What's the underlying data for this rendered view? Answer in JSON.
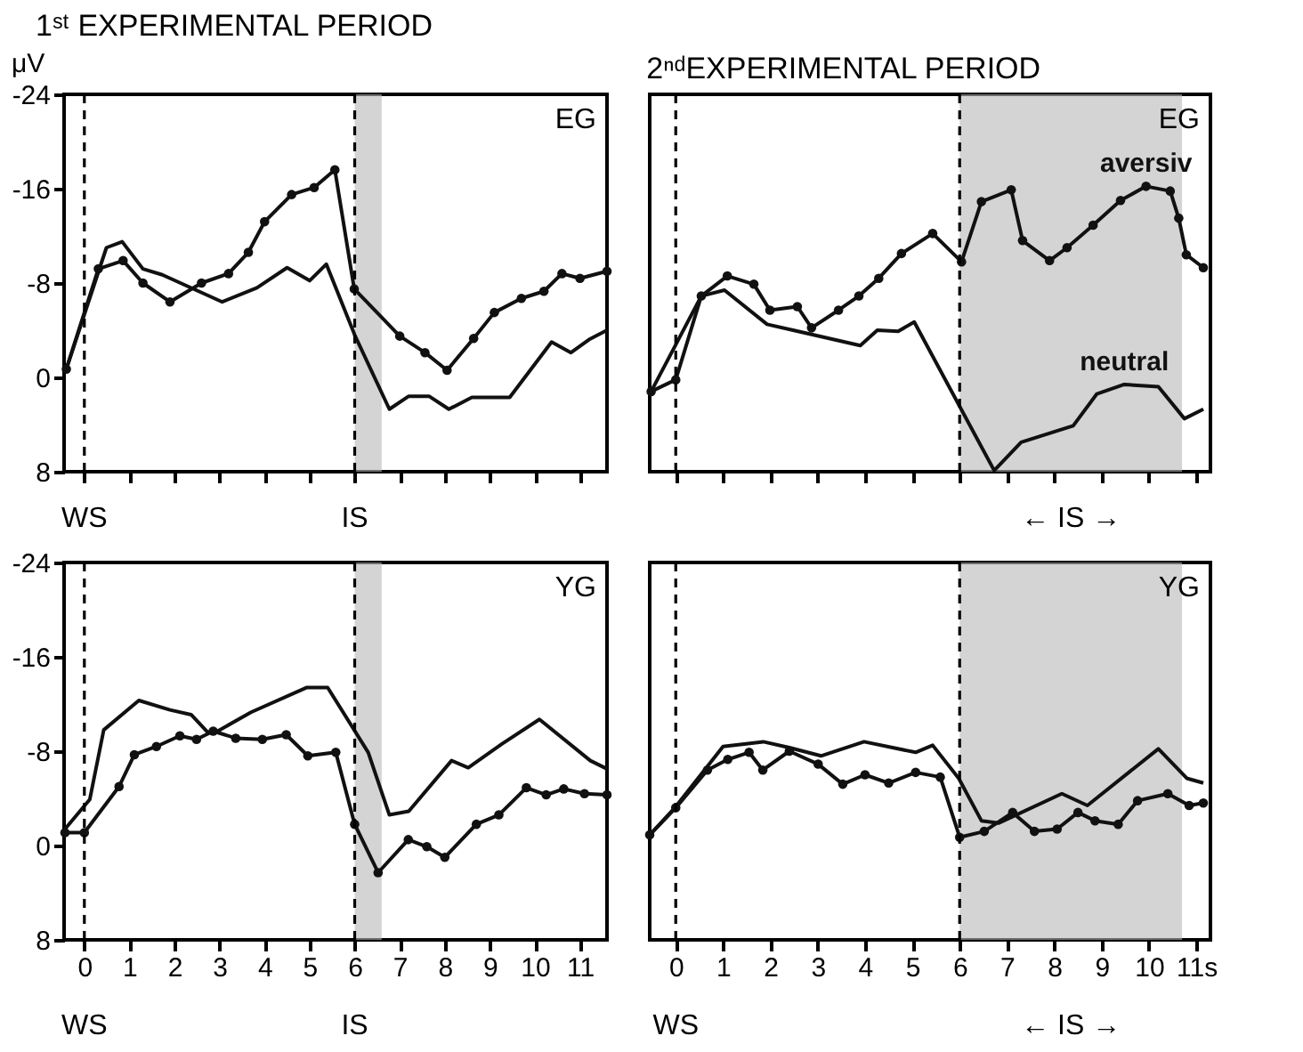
{
  "chart_data": [
    {
      "type": "line",
      "title": "1ˢᵗ EXPERIMENTAL PERIOD",
      "ylabel": "μV",
      "xlim": [
        -0.45,
        11.6
      ],
      "ylim": [
        8,
        -24
      ],
      "xticks": [
        0,
        1,
        2,
        3,
        4,
        5,
        6,
        7,
        8,
        9,
        10,
        11
      ],
      "yticks": [
        -24,
        -16,
        -8,
        0,
        8
      ],
      "tick_labels": "y",
      "grid": false,
      "legend": false,
      "series": [
        {
          "color": "#111111",
          "marker": "circle",
          "x": [
            -0.4,
            0.31,
            0.86,
            1.3,
            1.9,
            2.6,
            3.2,
            3.64,
            4.0,
            4.6,
            5.1,
            5.56,
            5.99,
            7.0,
            7.56,
            8.05,
            8.64,
            9.1,
            9.7,
            10.2,
            10.6,
            11.0,
            11.6
          ],
          "values": [
            -0.7,
            -9.2,
            -9.9,
            -8.0,
            -6.4,
            -8.0,
            -8.8,
            -10.6,
            -13.2,
            -15.5,
            -16.1,
            -17.6,
            -7.5,
            -3.5,
            -2.1,
            -0.6,
            -3.3,
            -5.5,
            -6.7,
            -7.3,
            -8.8,
            -8.4,
            -9.0
          ]
        },
        {
          "color": "#111111",
          "marker": "none",
          "x": [
            -0.4,
            0.49,
            0.84,
            1.3,
            1.73,
            3.06,
            3.83,
            4.5,
            5.0,
            5.37,
            6.0,
            6.77,
            7.2,
            7.65,
            8.09,
            8.6,
            9.44,
            10.37,
            10.8,
            11.2,
            11.6
          ],
          "values": [
            -0.7,
            -11.0,
            -11.5,
            -9.2,
            -8.7,
            -6.4,
            -7.6,
            -9.3,
            -8.2,
            -9.6,
            -3.6,
            2.7,
            1.6,
            1.6,
            2.7,
            1.7,
            1.7,
            -3.0,
            -2.1,
            -3.2,
            -4.0
          ]
        }
      ],
      "ref_lines": [
        {
          "axis": "x",
          "value": 0,
          "label": "WS",
          "line_style": "dashed"
        },
        {
          "axis": "x",
          "value": 6,
          "label": "IS",
          "line_style": "dashed"
        }
      ],
      "bands": [
        {
          "axis": "x",
          "from": 6,
          "to": 6.6,
          "color": "#b8b8b8"
        }
      ],
      "annotations": [
        "EG"
      ]
    },
    {
      "type": "line",
      "title": "2ⁿᵈEXPERIMENTAL PERIOD",
      "xlim": [
        -0.55,
        11.3
      ],
      "ylim": [
        8,
        -24
      ],
      "xticks": [
        0,
        1,
        2,
        3,
        4,
        5,
        6,
        7,
        8,
        9,
        10,
        11
      ],
      "yticks": [
        -24,
        -16,
        -8,
        0,
        8
      ],
      "tick_labels": false,
      "grid": false,
      "legend": false,
      "series": [
        {
          "name": "aversiv",
          "color": "#111111",
          "marker": "circle",
          "x": [
            -0.52,
            0,
            0.54,
            1.09,
            1.65,
            1.99,
            2.57,
            2.87,
            3.44,
            3.87,
            4.29,
            4.77,
            5.43,
            6.04,
            6.46,
            7.09,
            7.33,
            7.9,
            8.27,
            8.82,
            9.4,
            9.94,
            10.45,
            10.63,
            10.79,
            11.15
          ],
          "values": [
            1.2,
            0.2,
            -6.9,
            -8.6,
            -7.9,
            -5.7,
            -6.0,
            -4.2,
            -5.7,
            -6.9,
            -8.4,
            -10.5,
            -12.2,
            -9.8,
            -14.9,
            -15.9,
            -11.6,
            -9.9,
            -11.0,
            -12.9,
            -15.0,
            -16.2,
            -15.8,
            -13.5,
            -10.4,
            -9.3
          ]
        },
        {
          "name": "neutral",
          "color": "#111111",
          "marker": "none",
          "x": [
            -0.52,
            0.54,
            1.03,
            1.93,
            2.48,
            3.9,
            4.26,
            4.7,
            5.04,
            6.73,
            7.3,
            8.4,
            8.9,
            9.48,
            10.2,
            10.75,
            11.15
          ],
          "values": [
            1.2,
            -6.9,
            -7.4,
            -4.5,
            -4.0,
            -2.7,
            -4.0,
            -3.9,
            -4.7,
            7.9,
            5.5,
            4.1,
            1.4,
            0.6,
            0.8,
            3.5,
            2.7
          ]
        }
      ],
      "ref_lines": [
        {
          "axis": "x",
          "value": 0,
          "line_style": "dashed"
        },
        {
          "axis": "x",
          "value": 6,
          "line_style": "dashed"
        }
      ],
      "bands": [
        {
          "axis": "x",
          "from": 6,
          "to": 10.7,
          "label": "←  IS  →",
          "color": "#b8b8b8"
        }
      ],
      "annotations": [
        "EG"
      ]
    },
    {
      "type": "line",
      "xlim": [
        -0.45,
        11.6
      ],
      "ylim": [
        8,
        -24
      ],
      "xticks": [
        0,
        1,
        2,
        3,
        4,
        5,
        6,
        7,
        8,
        9,
        10,
        11
      ],
      "yticks": [
        -24,
        -16,
        -8,
        0,
        8
      ],
      "grid": false,
      "legend": false,
      "series": [
        {
          "color": "#111111",
          "marker": "none",
          "x": [
            -0.43,
            0.12,
            0.43,
            1.21,
            1.9,
            2.37,
            2.74,
            2.96,
            3.7,
            4.94,
            5.4,
            6.3,
            6.77,
            7.2,
            8.15,
            8.52,
            9.26,
            10.1,
            11.23,
            11.6
          ],
          "values": [
            -1.4,
            -3.9,
            -9.8,
            -12.3,
            -11.5,
            -11.1,
            -9.6,
            -9.7,
            -11.3,
            -13.4,
            -13.4,
            -7.9,
            -2.6,
            -2.9,
            -7.2,
            -6.6,
            -8.6,
            -10.7,
            -7.2,
            -6.5
          ]
        },
        {
          "color": "#111111",
          "marker": "circle",
          "x": [
            -0.43,
            0,
            0.77,
            1.11,
            1.6,
            2.12,
            2.49,
            2.86,
            3.36,
            3.95,
            4.48,
            4.96,
            5.58,
            6.0,
            6.52,
            7.19,
            7.6,
            8.0,
            8.7,
            9.2,
            9.81,
            10.25,
            10.64,
            11.1,
            11.6
          ],
          "values": [
            -1.1,
            -1.1,
            -5.0,
            -7.7,
            -8.4,
            -9.3,
            -9.0,
            -9.7,
            -9.1,
            -9.0,
            -9.4,
            -7.6,
            -7.9,
            -1.8,
            2.3,
            -0.5,
            0.1,
            1.0,
            -1.8,
            -2.6,
            -4.9,
            -4.3,
            -4.8,
            -4.4,
            -4.3
          ]
        }
      ],
      "ref_lines": [
        {
          "axis": "x",
          "value": 0,
          "label": "WS",
          "line_style": "dashed"
        },
        {
          "axis": "x",
          "value": 6,
          "label": "IS",
          "line_style": "dashed"
        }
      ],
      "bands": [
        {
          "axis": "x",
          "from": 6,
          "to": 6.6,
          "color": "#b8b8b8"
        }
      ],
      "annotations": [
        "YG"
      ]
    },
    {
      "type": "line",
      "xlim": [
        -0.55,
        11.3
      ],
      "ylim": [
        8,
        -24
      ],
      "xticks": [
        0,
        1,
        2,
        3,
        4,
        5,
        6,
        7,
        8,
        9,
        10,
        {
          "value": 11,
          "label": "11s"
        }
      ],
      "yticks": [
        -24,
        -16,
        -8,
        0,
        8
      ],
      "tick_labels": "x",
      "grid": false,
      "legend": false,
      "series": [
        {
          "color": "#111111",
          "marker": "none",
          "x": [
            -0.55,
            -0.02,
            1.0,
            1.85,
            2.4,
            3.07,
            3.98,
            5.07,
            5.43,
            5.98,
            6.46,
            6.82,
            8.16,
            8.7,
            10.2,
            10.8,
            11.15
          ],
          "values": [
            -0.9,
            -3.2,
            -8.4,
            -8.8,
            -8.3,
            -7.6,
            -8.8,
            -7.9,
            -8.5,
            -5.7,
            -2.1,
            -1.9,
            -4.4,
            -3.4,
            -8.2,
            -5.7,
            -5.3
          ]
        },
        {
          "color": "#111111",
          "marker": "circle",
          "x": [
            -0.55,
            0,
            0.67,
            1.1,
            1.55,
            1.84,
            2.4,
            3.01,
            3.53,
            4.0,
            4.5,
            5.07,
            5.59,
            6.0,
            6.52,
            7.12,
            7.58,
            8.06,
            8.5,
            8.86,
            9.35,
            9.76,
            10.4,
            10.85,
            11.15
          ],
          "values": [
            -0.9,
            -3.2,
            -6.4,
            -7.3,
            -7.9,
            -6.4,
            -8.0,
            -6.9,
            -5.2,
            -6.0,
            -5.3,
            -6.2,
            -5.8,
            -0.7,
            -1.2,
            -2.8,
            -1.2,
            -1.4,
            -2.8,
            -2.1,
            -1.8,
            -3.8,
            -4.4,
            -3.4,
            -3.6
          ]
        }
      ],
      "ref_lines": [
        {
          "axis": "x",
          "value": 0,
          "label": "WS",
          "line_style": "dashed"
        },
        {
          "axis": "x",
          "value": 6,
          "line_style": "dashed"
        }
      ],
      "bands": [
        {
          "axis": "x",
          "from": 6,
          "to": 10.7,
          "label": "←  IS  →",
          "color": "#b8b8b8"
        }
      ],
      "annotations": [
        "YG"
      ]
    }
  ]
}
